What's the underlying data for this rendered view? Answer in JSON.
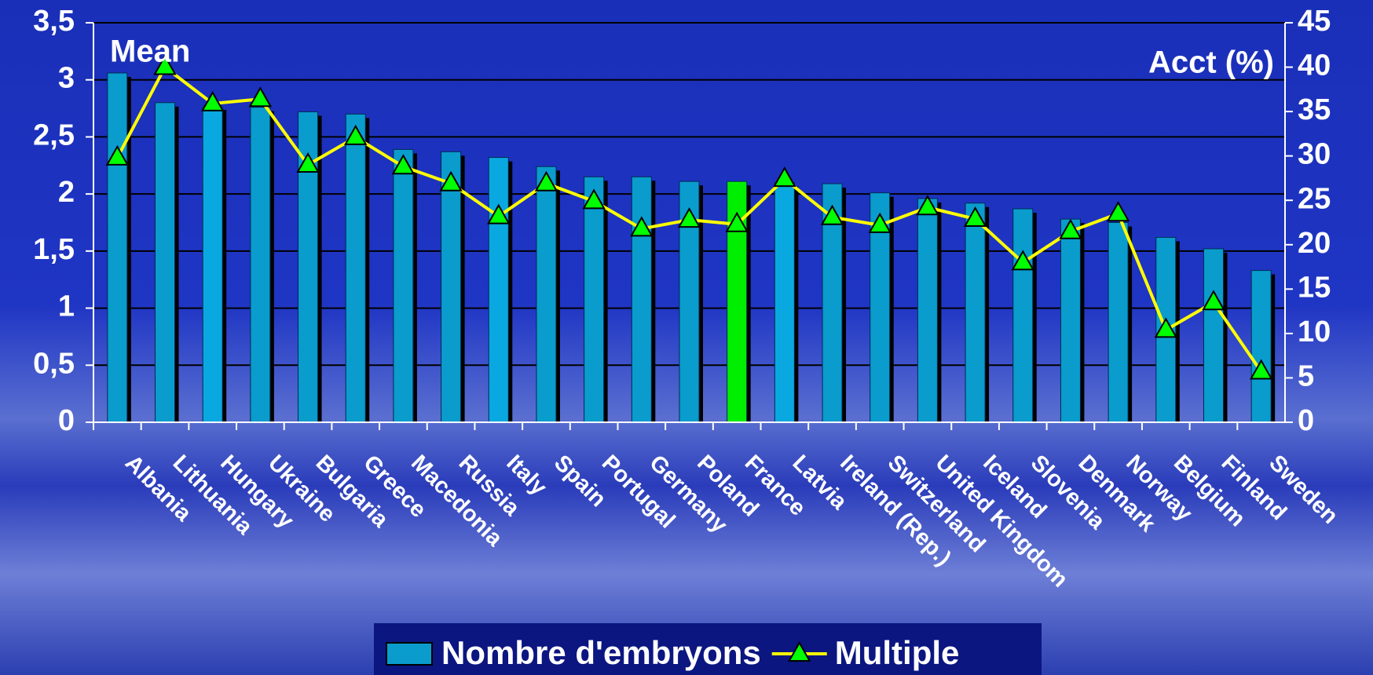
{
  "chart_data": {
    "type": "bar",
    "y_label": "Mean",
    "y2_label": "Acct (%)",
    "categories": [
      "Albania",
      "Lithuania",
      "Hungary",
      "Ukraine",
      "Bulgaria",
      "Greece",
      "Macedonia",
      "Russia",
      "Italy",
      "Spain",
      "Portugal",
      "Germany",
      "Poland",
      "France",
      "Latvia",
      "Ireland (Rep.)",
      "Switzerland",
      "United Kingdom",
      "Iceland",
      "Slovenia",
      "Denmark",
      "Norway",
      "Belgium",
      "Finland",
      "Sweden"
    ],
    "series": [
      {
        "name": "Nombre d'embryons",
        "type": "bar",
        "color": "#0a9ccc",
        "colors": [
          "#0a9ccc",
          "#0a9ccc",
          "#0aa8e0",
          "#0a9ccc",
          "#0a9ccc",
          "#0a9ccc",
          "#0a9ccc",
          "#0a9ccc",
          "#0aa8e0",
          "#0a9ccc",
          "#0a9ccc",
          "#0a9ccc",
          "#0a9ccc",
          "#00ee00",
          "#0aa8e0",
          "#0a9ccc",
          "#0a9ccc",
          "#0a9ccc",
          "#0a9ccc",
          "#0a9ccc",
          "#0a9ccc",
          "#0a9ccc",
          "#0a9ccc",
          "#0a9ccc",
          "#0a9ccc"
        ],
        "values": [
          3.06,
          2.8,
          2.77,
          2.76,
          2.72,
          2.7,
          2.39,
          2.37,
          2.32,
          2.24,
          2.15,
          2.15,
          2.11,
          2.11,
          2.1,
          2.09,
          2.01,
          1.96,
          1.92,
          1.87,
          1.78,
          1.75,
          1.62,
          1.52,
          1.33
        ]
      },
      {
        "name": "Multiple",
        "type": "line",
        "axis": "y2",
        "color": "#ffff00",
        "marker_color": "#00ff00",
        "values": [
          29.8,
          40,
          35.9,
          36.4,
          29,
          32.1,
          28.8,
          26.9,
          23.2,
          26.9,
          24.9,
          21.8,
          22.8,
          22.3,
          27.4,
          23.1,
          22.2,
          24.2,
          22.9,
          18,
          21.5,
          23.5,
          10.4,
          13.5,
          5.7
        ]
      }
    ],
    "ylim": [
      0,
      3.5
    ],
    "yticks": [
      0,
      {
        "value": 0.5,
        "label": "0,5"
      },
      1,
      {
        "value": 1.5,
        "label": "1,5"
      },
      2,
      {
        "value": 2.5,
        "label": "2,5"
      },
      3,
      {
        "value": 3.5,
        "label": "3,5"
      }
    ],
    "y2lim": [
      0,
      45
    ],
    "y2ticks": [
      0,
      5,
      10,
      15,
      20,
      25,
      30,
      35,
      40,
      45
    ],
    "grid": true
  }
}
